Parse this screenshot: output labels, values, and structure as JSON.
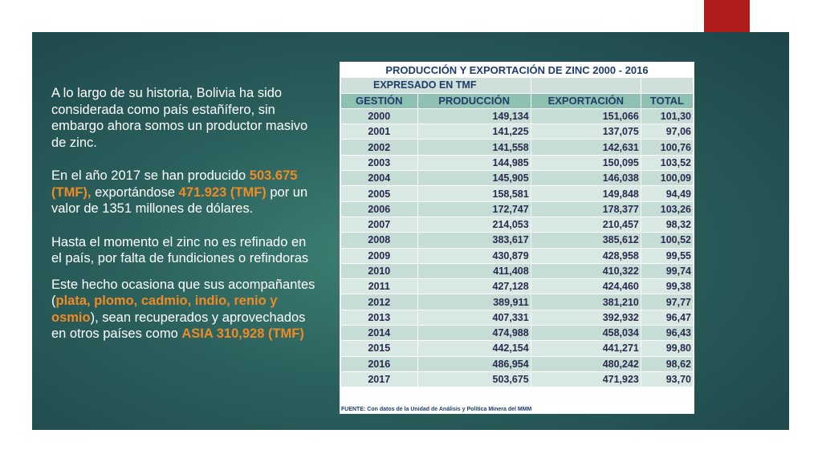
{
  "text": {
    "p1": "A lo largo de su historia, Bolivia ha sido considerada como país estañífero, sin embargo ahora somos un productor masivo de zinc.",
    "p2_a": "En el año 2017 se han producido ",
    "p2_h1": "503.675 (TMF),",
    "p2_b": " exportándose ",
    "p2_h2": "471.923 (TMF)",
    "p2_c": " por un valor de 1351 millones de dólares.",
    "p3": "Hasta el momento el zinc no es refinado en el país, por falta de fundiciones o refindoras",
    "p4_a": "Este hecho ocasiona que sus acompañantes (",
    "p4_h1": "plata, plomo, cadmio, indio, renio y osmio",
    "p4_b": "), sean recuperados y aprovechados en otros países como ",
    "p4_h2": "ASIA 310,928 (TMF)"
  },
  "table": {
    "title": "PRODUCCIÓN Y EXPORTACIÓN DE ZINC 2000 - 2016",
    "subtitle": "EXPRESADO EN TMF",
    "headers": [
      "GESTIÓN",
      "PRODUCCIÓN",
      "EXPORTACIÓN",
      "TOTAL"
    ],
    "rows": [
      [
        "2000",
        "149,134",
        "151,066",
        "101,30"
      ],
      [
        "2001",
        "141,225",
        "137,075",
        "97,06"
      ],
      [
        "2002",
        "141,558",
        "142,631",
        "100,76"
      ],
      [
        "2003",
        "144,985",
        "150,095",
        "103,52"
      ],
      [
        "2004",
        "145,905",
        "146,038",
        "100,09"
      ],
      [
        "2005",
        "158,581",
        "149,848",
        "94,49"
      ],
      [
        "2006",
        "172,747",
        "178,377",
        "103,26"
      ],
      [
        "2007",
        "214,053",
        "210,457",
        "98,32"
      ],
      [
        "2008",
        "383,617",
        "385,612",
        "100,52"
      ],
      [
        "2009",
        "430,879",
        "428,958",
        "99,55"
      ],
      [
        "2010",
        "411,408",
        "410,322",
        "99,74"
      ],
      [
        "2011",
        "427,128",
        "424,460",
        "99,38"
      ],
      [
        "2012",
        "389,911",
        "381,210",
        "97,77"
      ],
      [
        "2013",
        "407,331",
        "392,932",
        "96,47"
      ],
      [
        "2014",
        "474,988",
        "458,034",
        "96,43"
      ],
      [
        "2015",
        "442,154",
        "441,271",
        "99,80"
      ],
      [
        "2016",
        "486,954",
        "480,242",
        "98,62"
      ],
      [
        "2017",
        "503,675",
        "471,923",
        "93,70"
      ]
    ],
    "source": "FUENTE: Con datos de la Unidad de Análisis y Política Minera del MMM"
  },
  "colors": {
    "accent_red": "#b01c1a",
    "highlight_orange": "#f08a24",
    "panel_teal": "#2a5f5c"
  }
}
